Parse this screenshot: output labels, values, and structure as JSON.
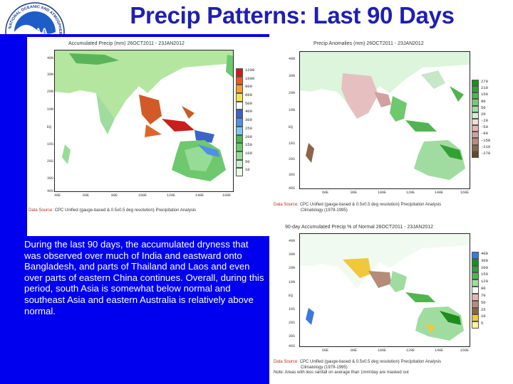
{
  "slide": {
    "title": "Precip Patterns: Last 90 Days",
    "logo_text": "NOAA",
    "logo_ring_text": "NATIONAL OCEANIC AND ATMOSPHERIC ADMINISTRATION"
  },
  "body_text": "During the last 90 days, the accumulated dryness that was observed over much of India and eastward onto Bangladesh, and parts of Thailand and Laos and even over parts of eastern China continues. Overall, during this period, south Asia is somewhat below normal and southeast Asia and eastern Australia is relatively above normal.",
  "maps": [
    {
      "title": "Accumulated Precip (mm) 26OCT2011 - 23JAN2012",
      "caption_source": "Data Source:",
      "caption": "CPC Unified (gauge-based & 0.5x0.5 deg resolution) Precipitation Analysis",
      "lat_ticks": [
        "40N",
        "30N",
        "20N",
        "10N",
        "EQ",
        "10S",
        "20S",
        "30S",
        "40S"
      ],
      "lon_ticks": [
        "40E",
        "60E",
        "80E",
        "100E",
        "120E",
        "140E",
        "160E"
      ],
      "colorbar_labels": [
        "1200",
        "1000",
        "800",
        "600",
        "500",
        "400",
        "300",
        "250",
        "200",
        "150",
        "100",
        "50",
        "10"
      ],
      "colorbar_colors": [
        "#c81e1e",
        "#e85a1e",
        "#f5a032",
        "#f0e650",
        "#ffffff",
        "#3c64c8",
        "#5090e6",
        "#82c8f0",
        "#50b450",
        "#6ec86e",
        "#96dc96",
        "#c8f0c8",
        "#e8fae8"
      ]
    },
    {
      "title": "Precip Anomalies (mm) 26OCT2011 - 23JAN2012",
      "caption_source": "Data Source:",
      "caption": "CPC Unified (gauge-based & 0.5x0.5 deg resolution) Precipitation Analysis",
      "caption2": "Climatology (1979-1995)",
      "lat_ticks": [
        "40N",
        "30N",
        "20N",
        "10N",
        "EQ",
        "10S",
        "20S",
        "30S",
        "40S"
      ],
      "lon_ticks": [
        "60E",
        "80E",
        "100E",
        "120E",
        "140E",
        "160E"
      ],
      "colorbar_labels": [
        "270",
        "210",
        "150",
        "90",
        "50",
        "20",
        "-20",
        "-50",
        "-90",
        "-150",
        "-210",
        "-270"
      ],
      "colorbar_colors": [
        "#1e8c1e",
        "#32a032",
        "#50b450",
        "#78c878",
        "#a0dca0",
        "#d2f0d2",
        "#f5dcdc",
        "#e6b4b4",
        "#d2a0a0",
        "#b48c78",
        "#8c6446",
        "#644628"
      ]
    },
    {
      "title": "90-day Accumulated Precip % of Normal 26OCT2011 - 23JAN2012",
      "caption_source": "Data Source:",
      "caption": "CPC Unified (gauge-based & 0.5x0.5 deg resolution) Precipitation Analysis",
      "caption2": "Climatology (1979-1995)",
      "note": "Note: Areas with less rainfall on average than 1mm/day are masked out",
      "lat_ticks": [
        "40N",
        "30N",
        "20N",
        "10N",
        "EQ",
        "10S",
        "20S",
        "30S",
        "40S"
      ],
      "lon_ticks": [
        "60E",
        "80E",
        "100E",
        "120E",
        "140E",
        "160E"
      ],
      "colorbar_labels": [
        "400",
        "300",
        "200",
        "150",
        "120",
        "80",
        "70",
        "50",
        "25",
        "10",
        "5"
      ],
      "colorbar_colors": [
        "#3c78dc",
        "#1e8c1e",
        "#32a032",
        "#50b450",
        "#a0dca0",
        "#ffffff",
        "#e6b4b4",
        "#b48c78",
        "#8c6446",
        "#f0c83c",
        "#fff0a0"
      ]
    }
  ]
}
